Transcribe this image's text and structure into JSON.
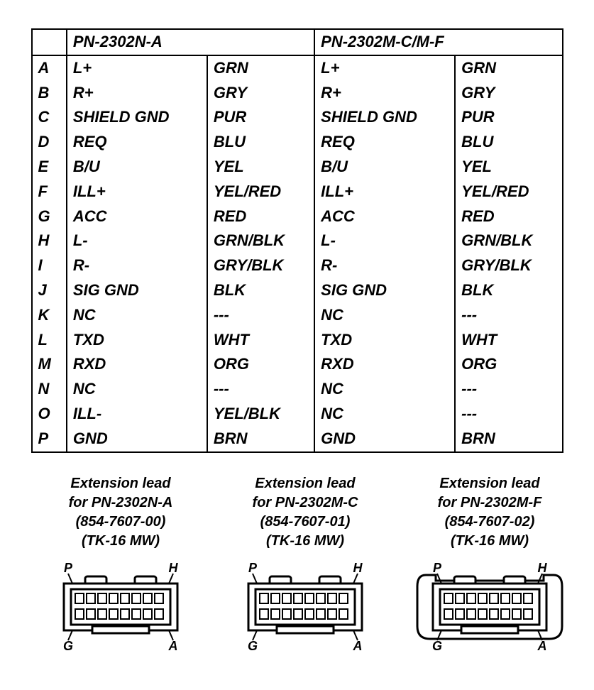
{
  "table": {
    "header_left": "PN-2302N-A",
    "header_right": "PN-2302M-C/M-F",
    "font_size": 22,
    "border_color": "#000000",
    "rows": [
      {
        "l": "A",
        "s1": "L+",
        "c1": "GRN",
        "s2": "L+",
        "c2": "GRN"
      },
      {
        "l": "B",
        "s1": "R+",
        "c1": "GRY",
        "s2": "R+",
        "c2": "GRY"
      },
      {
        "l": "C",
        "s1": "SHIELD GND",
        "c1": "PUR",
        "s2": "SHIELD GND",
        "c2": "PUR"
      },
      {
        "l": "D",
        "s1": "REQ",
        "c1": "BLU",
        "s2": "REQ",
        "c2": "BLU"
      },
      {
        "l": "E",
        "s1": "B/U",
        "c1": "YEL",
        "s2": "B/U",
        "c2": "YEL"
      },
      {
        "l": "F",
        "s1": "ILL+",
        "c1": "YEL/RED",
        "s2": "ILL+",
        "c2": "YEL/RED"
      },
      {
        "l": "G",
        "s1": "ACC",
        "c1": "RED",
        "s2": "ACC",
        "c2": "RED"
      },
      {
        "l": "H",
        "s1": "L-",
        "c1": "GRN/BLK",
        "s2": "L-",
        "c2": "GRN/BLK"
      },
      {
        "l": "I",
        "s1": "R-",
        "c1": "GRY/BLK",
        "s2": "R-",
        "c2": "GRY/BLK"
      },
      {
        "l": "J",
        "s1": "SIG GND",
        "c1": "BLK",
        "s2": "SIG GND",
        "c2": "BLK"
      },
      {
        "l": "K",
        "s1": "NC",
        "c1": "---",
        "s2": "NC",
        "c2": "---"
      },
      {
        "l": "L",
        "s1": "TXD",
        "c1": "WHT",
        "s2": "TXD",
        "c2": "WHT"
      },
      {
        "l": "M",
        "s1": "RXD",
        "c1": "ORG",
        "s2": "RXD",
        "c2": "ORG"
      },
      {
        "l": "N",
        "s1": "NC",
        "c1": "---",
        "s2": "NC",
        "c2": "---"
      },
      {
        "l": "O",
        "s1": "ILL-",
        "c1": "YEL/BLK",
        "s2": "NC",
        "c2": "---"
      },
      {
        "l": "P",
        "s1": "GND",
        "c1": "BRN",
        "s2": "GND",
        "c2": "BRN"
      }
    ]
  },
  "connectors": [
    {
      "title": "Extension lead",
      "for": "for PN-2302N-A",
      "pn": "(854-7607-00)",
      "tk": "(TK-16 MW)",
      "corners": {
        "tl": "P",
        "tr": "H",
        "bl": "G",
        "br": "A"
      },
      "shroud": false
    },
    {
      "title": "Extension lead",
      "for": "for PN-2302M-C",
      "pn": "(854-7607-01)",
      "tk": "(TK-16 MW)",
      "corners": {
        "tl": "P",
        "tr": "H",
        "bl": "G",
        "br": "A"
      },
      "shroud": false
    },
    {
      "title": "Extension lead",
      "for": "for PN-2302M-F",
      "pn": "(854-7607-02)",
      "tk": "(TK-16 MW)",
      "corners": {
        "tl": "P",
        "tr": "H",
        "bl": "G",
        "br": "A"
      },
      "shroud": true
    }
  ],
  "connector_drawing": {
    "pins_per_row": 8,
    "rows": 2,
    "stroke": "#000000",
    "stroke_width": 3,
    "fill": "#ffffff"
  }
}
